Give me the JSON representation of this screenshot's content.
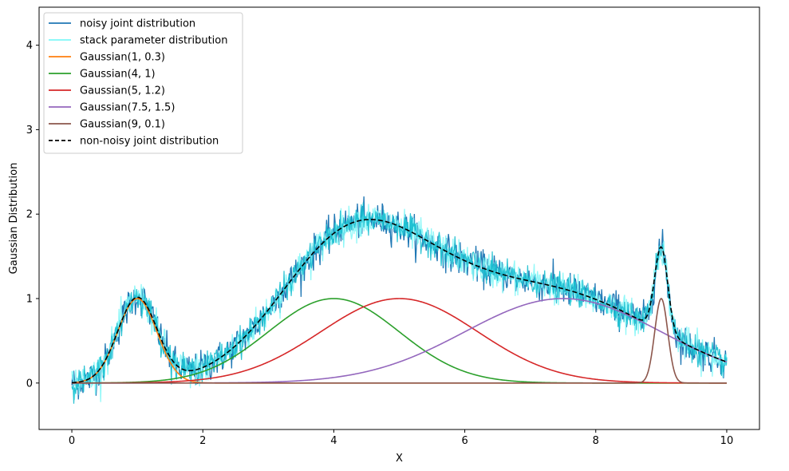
{
  "chart_data": {
    "type": "line",
    "xlabel": "X",
    "ylabel": "Gaussian Distribution",
    "xlim": [
      -0.5,
      10.5
    ],
    "ylim": [
      -0.55,
      4.45
    ],
    "xticks": [
      0,
      2,
      4,
      6,
      8,
      10
    ],
    "yticks": [
      0,
      1,
      2,
      3,
      4
    ],
    "grid": false,
    "legend_position": "top-left",
    "noise_amplitude": 0.1,
    "components": [
      {
        "name": "Gaussian(1, 0.3)",
        "mean": 1,
        "sd": 0.3,
        "color": "#ff7f0e"
      },
      {
        "name": "Gaussian(4, 1)",
        "mean": 4,
        "sd": 1,
        "color": "#2ca02c"
      },
      {
        "name": "Gaussian(5, 1.2)",
        "mean": 5,
        "sd": 1.2,
        "color": "#d62728"
      },
      {
        "name": "Gaussian(7.5, 1.5)",
        "mean": 7.5,
        "sd": 1.5,
        "color": "#9467bd"
      },
      {
        "name": "Gaussian(9, 0.1)",
        "mean": 9,
        "sd": 0.1,
        "color": "#8c564b"
      }
    ],
    "series": [
      {
        "name": "noisy joint distribution",
        "color": "#1f77b4",
        "style": "solid"
      },
      {
        "name": "stack parameter distribution",
        "color": "#7ff7f7",
        "style": "solid"
      },
      {
        "name": "non-noisy joint distribution",
        "color": "#000000",
        "style": "dashed"
      }
    ],
    "legend": [
      {
        "label": "noisy joint distribution",
        "color": "#1f77b4",
        "dash": false
      },
      {
        "label": "stack parameter distribution",
        "color": "#7ff7f7",
        "dash": false
      },
      {
        "label": "Gaussian(1, 0.3)",
        "color": "#ff7f0e",
        "dash": false
      },
      {
        "label": "Gaussian(4, 1)",
        "color": "#2ca02c",
        "dash": false
      },
      {
        "label": "Gaussian(5, 1.2)",
        "color": "#d62728",
        "dash": false
      },
      {
        "label": "Gaussian(7.5, 1.5)",
        "color": "#9467bd",
        "dash": false
      },
      {
        "label": "Gaussian(9, 0.1)",
        "color": "#8c564b",
        "dash": false
      },
      {
        "label": "non-noisy joint distribution",
        "color": "#000000",
        "dash": true
      }
    ]
  }
}
